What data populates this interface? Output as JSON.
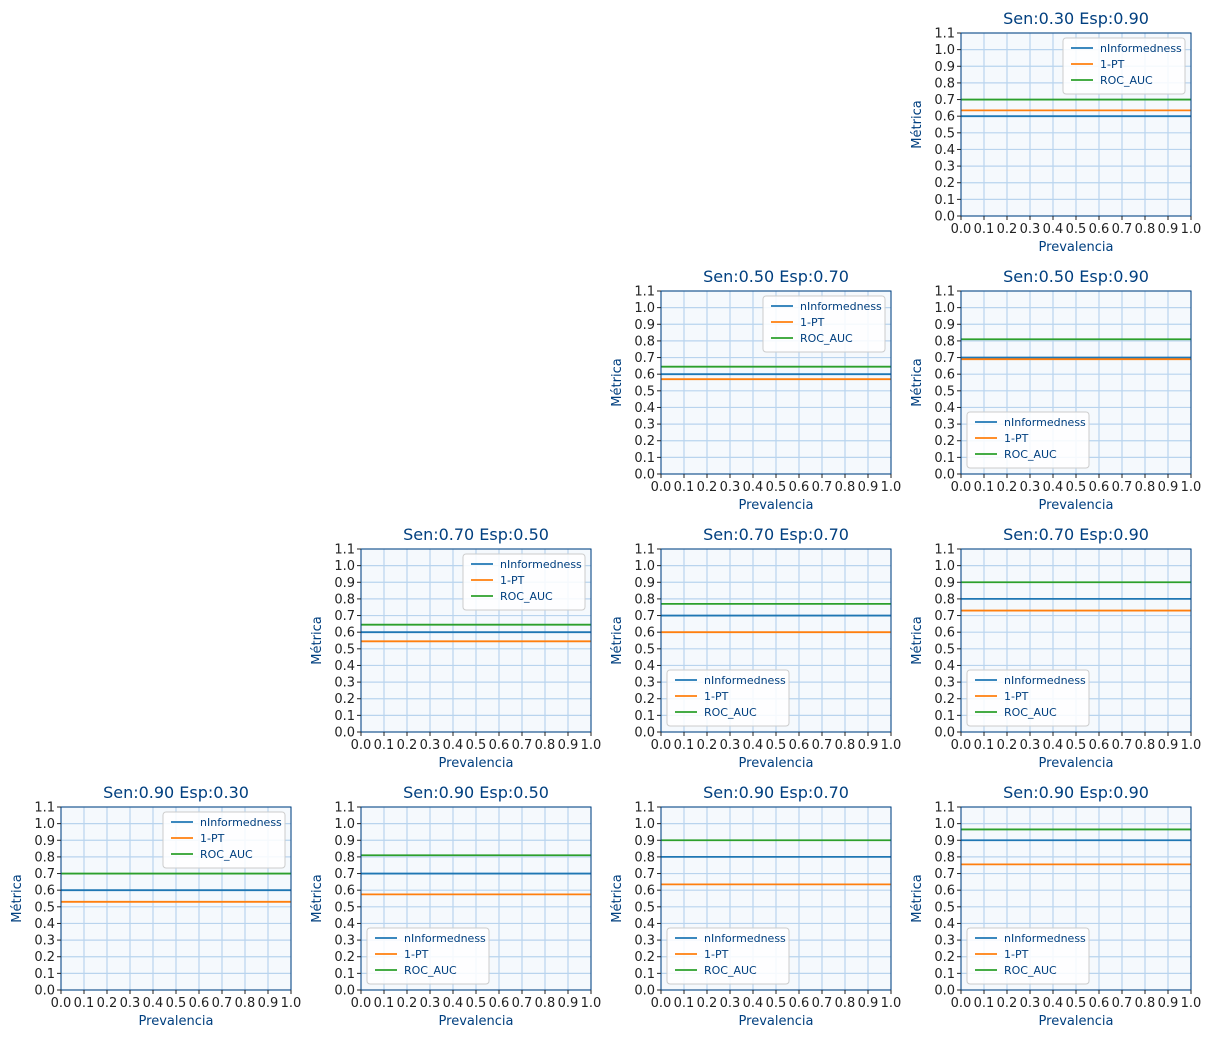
{
  "figure": {
    "x_tick_labels": [
      "0.0",
      "0.1",
      "0.2",
      "0.3",
      "0.4",
      "0.5",
      "0.6",
      "0.7",
      "0.8",
      "0.9",
      "1.0"
    ],
    "y_tick_labels": [
      "0.0",
      "0.1",
      "0.2",
      "0.3",
      "0.4",
      "0.5",
      "0.6",
      "0.7",
      "0.8",
      "0.9",
      "1.0",
      "1.1"
    ],
    "colors": {
      "nInformedness": "#1f77b4",
      "1-PT": "#ff7f0e",
      "ROC_AUC": "#2ca02c",
      "axis": "#003f7f",
      "grid": "#b9d4ee",
      "plot_bg": "#f5f9fd"
    }
  },
  "chart_data": [
    {
      "type": "line",
      "title": "Sen:0.30 Esp:0.90",
      "xlabel": "Prevalencia",
      "ylabel": "Métrica",
      "xlim": [
        0,
        1
      ],
      "ylim": [
        0,
        1.1
      ],
      "grid": true,
      "legend": "upper right",
      "row": 0,
      "col": 3,
      "series": [
        {
          "name": "nInformedness",
          "values": [
            0.6,
            0.6
          ]
        },
        {
          "name": "1-PT",
          "values": [
            0.635,
            0.635
          ]
        },
        {
          "name": "ROC_AUC",
          "values": [
            0.7,
            0.7
          ]
        }
      ],
      "x": [
        0,
        1
      ]
    },
    {
      "type": "line",
      "title": "Sen:0.50 Esp:0.70",
      "xlabel": "Prevalencia",
      "ylabel": "Métrica",
      "xlim": [
        0,
        1
      ],
      "ylim": [
        0,
        1.1
      ],
      "grid": true,
      "legend": "upper right",
      "row": 1,
      "col": 2,
      "series": [
        {
          "name": "nInformedness",
          "values": [
            0.6,
            0.6
          ]
        },
        {
          "name": "1-PT",
          "values": [
            0.57,
            0.57
          ]
        },
        {
          "name": "ROC_AUC",
          "values": [
            0.645,
            0.645
          ]
        }
      ],
      "x": [
        0,
        1
      ]
    },
    {
      "type": "line",
      "title": "Sen:0.50 Esp:0.90",
      "xlabel": "Prevalencia",
      "ylabel": "Métrica",
      "xlim": [
        0,
        1
      ],
      "ylim": [
        0,
        1.1
      ],
      "grid": true,
      "legend": "lower left",
      "row": 1,
      "col": 3,
      "series": [
        {
          "name": "nInformedness",
          "values": [
            0.7,
            0.7
          ]
        },
        {
          "name": "1-PT",
          "values": [
            0.69,
            0.69
          ]
        },
        {
          "name": "ROC_AUC",
          "values": [
            0.81,
            0.81
          ]
        }
      ],
      "x": [
        0,
        1
      ]
    },
    {
      "type": "line",
      "title": "Sen:0.70 Esp:0.50",
      "xlabel": "Prevalencia",
      "ylabel": "Métrica",
      "xlim": [
        0,
        1
      ],
      "ylim": [
        0,
        1.1
      ],
      "grid": true,
      "legend": "upper right",
      "row": 2,
      "col": 1,
      "series": [
        {
          "name": "nInformedness",
          "values": [
            0.6,
            0.6
          ]
        },
        {
          "name": "1-PT",
          "values": [
            0.545,
            0.545
          ]
        },
        {
          "name": "ROC_AUC",
          "values": [
            0.645,
            0.645
          ]
        }
      ],
      "x": [
        0,
        1
      ]
    },
    {
      "type": "line",
      "title": "Sen:0.70 Esp:0.70",
      "xlabel": "Prevalencia",
      "ylabel": "Métrica",
      "xlim": [
        0,
        1
      ],
      "ylim": [
        0,
        1.1
      ],
      "grid": true,
      "legend": "lower left",
      "row": 2,
      "col": 2,
      "series": [
        {
          "name": "nInformedness",
          "values": [
            0.7,
            0.7
          ]
        },
        {
          "name": "1-PT",
          "values": [
            0.6,
            0.6
          ]
        },
        {
          "name": "ROC_AUC",
          "values": [
            0.77,
            0.77
          ]
        }
      ],
      "x": [
        0,
        1
      ]
    },
    {
      "type": "line",
      "title": "Sen:0.70 Esp:0.90",
      "xlabel": "Prevalencia",
      "ylabel": "Métrica",
      "xlim": [
        0,
        1
      ],
      "ylim": [
        0,
        1.1
      ],
      "grid": true,
      "legend": "lower left",
      "row": 2,
      "col": 3,
      "series": [
        {
          "name": "nInformedness",
          "values": [
            0.8,
            0.8
          ]
        },
        {
          "name": "1-PT",
          "values": [
            0.73,
            0.73
          ]
        },
        {
          "name": "ROC_AUC",
          "values": [
            0.9,
            0.9
          ]
        }
      ],
      "x": [
        0,
        1
      ]
    },
    {
      "type": "line",
      "title": "Sen:0.90 Esp:0.30",
      "xlabel": "Prevalencia",
      "ylabel": "Métrica",
      "xlim": [
        0,
        1
      ],
      "ylim": [
        0,
        1.1
      ],
      "grid": true,
      "legend": "upper right",
      "row": 3,
      "col": 0,
      "series": [
        {
          "name": "nInformedness",
          "values": [
            0.6,
            0.6
          ]
        },
        {
          "name": "1-PT",
          "values": [
            0.53,
            0.53
          ]
        },
        {
          "name": "ROC_AUC",
          "values": [
            0.7,
            0.7
          ]
        }
      ],
      "x": [
        0,
        1
      ]
    },
    {
      "type": "line",
      "title": "Sen:0.90 Esp:0.50",
      "xlabel": "Prevalencia",
      "ylabel": "Métrica",
      "xlim": [
        0,
        1
      ],
      "ylim": [
        0,
        1.1
      ],
      "grid": true,
      "legend": "lower left",
      "row": 3,
      "col": 1,
      "series": [
        {
          "name": "nInformedness",
          "values": [
            0.7,
            0.7
          ]
        },
        {
          "name": "1-PT",
          "values": [
            0.575,
            0.575
          ]
        },
        {
          "name": "ROC_AUC",
          "values": [
            0.81,
            0.81
          ]
        }
      ],
      "x": [
        0,
        1
      ]
    },
    {
      "type": "line",
      "title": "Sen:0.90 Esp:0.70",
      "xlabel": "Prevalencia",
      "ylabel": "Métrica",
      "xlim": [
        0,
        1
      ],
      "ylim": [
        0,
        1.1
      ],
      "grid": true,
      "legend": "lower left",
      "row": 3,
      "col": 2,
      "series": [
        {
          "name": "nInformedness",
          "values": [
            0.8,
            0.8
          ]
        },
        {
          "name": "1-PT",
          "values": [
            0.635,
            0.635
          ]
        },
        {
          "name": "ROC_AUC",
          "values": [
            0.9,
            0.9
          ]
        }
      ],
      "x": [
        0,
        1
      ]
    },
    {
      "type": "line",
      "title": "Sen:0.90 Esp:0.90",
      "xlabel": "Prevalencia",
      "ylabel": "Métrica",
      "xlim": [
        0,
        1
      ],
      "ylim": [
        0,
        1.1
      ],
      "grid": true,
      "legend": "lower left",
      "row": 3,
      "col": 3,
      "series": [
        {
          "name": "nInformedness",
          "values": [
            0.9,
            0.9
          ]
        },
        {
          "name": "1-PT",
          "values": [
            0.755,
            0.755
          ]
        },
        {
          "name": "ROC_AUC",
          "values": [
            0.965,
            0.965
          ]
        }
      ],
      "x": [
        0,
        1
      ]
    }
  ]
}
